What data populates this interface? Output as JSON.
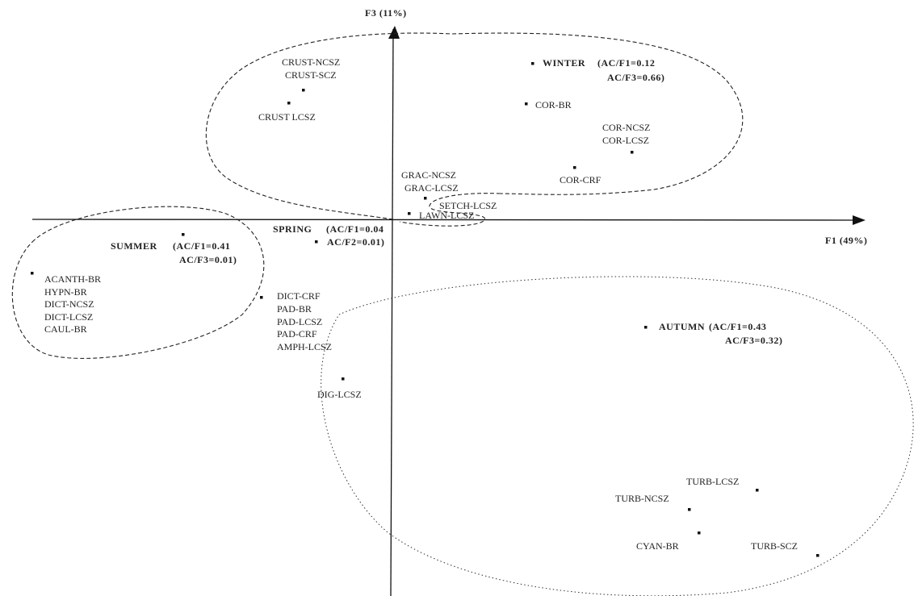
{
  "axes": {
    "x_label": "F1 (49%)",
    "y_label": "F3 (11%)"
  },
  "seasons": [
    {
      "name": "WINTER",
      "stats": [
        "(AC/F1=0.12",
        "AC/F3=0.66)"
      ]
    },
    {
      "name": "SPRING",
      "stats": [
        "(AC/F1=0.04",
        "AC/F2=0.01)"
      ]
    },
    {
      "name": "SUMMER",
      "stats": [
        "(AC/F1=0.41",
        "AC/F3=0.01)"
      ]
    },
    {
      "name": "AUTUMN",
      "stats": [
        "(AC/F1=0.43",
        "AC/F3=0.32)"
      ]
    }
  ],
  "points": [
    "CRUST-NCSZ",
    "CRUST-SCZ",
    "CRUST LCSZ",
    "COR-BR",
    "COR-NCSZ",
    "COR-LCSZ",
    "COR-CRF",
    "GRAC-NCSZ",
    "GRAC-LCSZ",
    "SETCH-LCSZ",
    "LAWN-LCSZ",
    "ACANTH-BR",
    "HYPN-BR",
    "DICT-NCSZ",
    "DICT-LCSZ",
    "CAUL-BR",
    "DICT-CRF",
    "PAD-BR",
    "PAD-LCSZ",
    "PAD-CRF",
    "AMPH-LCSZ",
    "DIG-LCSZ",
    "TURB-LCSZ",
    "TURB-NCSZ",
    "CYAN-BR",
    "TURB-SCZ"
  ]
}
